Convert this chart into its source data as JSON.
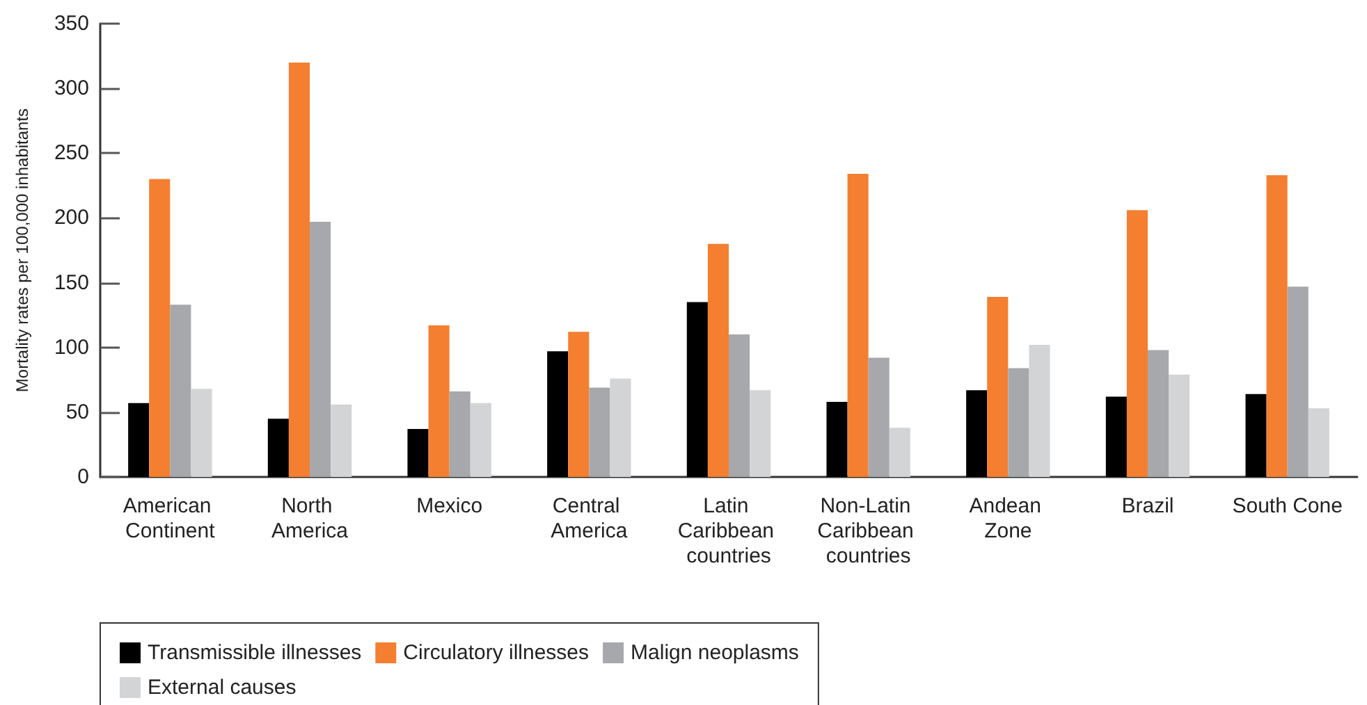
{
  "chart_data": {
    "type": "bar",
    "ylabel": "Mortality rates per 100,000 inhabitants",
    "categories": [
      "American Continent",
      "North America",
      "Mexico",
      "Central America",
      "Latin Caribbean countries",
      "Non-Latin Caribbean countries",
      "Andean Zone",
      "Brazil",
      "South Cone"
    ],
    "series": [
      {
        "name": "Transmissible illnesses",
        "color": "#000000",
        "values": [
          57,
          45,
          37,
          97,
          135,
          58,
          67,
          62,
          64
        ]
      },
      {
        "name": "Circulatory illnesses",
        "color": "#f47f30",
        "values": [
          230,
          320,
          117,
          112,
          180,
          234,
          139,
          206,
          233
        ]
      },
      {
        "name": "Malign neoplasms",
        "color": "#a7a8ac",
        "values": [
          133,
          197,
          66,
          69,
          110,
          92,
          84,
          98,
          147
        ]
      },
      {
        "name": "External causes",
        "color": "#d3d4d6",
        "values": [
          68,
          56,
          57,
          76,
          67,
          38,
          102,
          79,
          53
        ]
      }
    ],
    "ylim": [
      0,
      350
    ],
    "yticks": [
      0,
      50,
      100,
      150,
      200,
      250,
      300,
      350
    ],
    "grid": false,
    "legend": "bottom left"
  }
}
